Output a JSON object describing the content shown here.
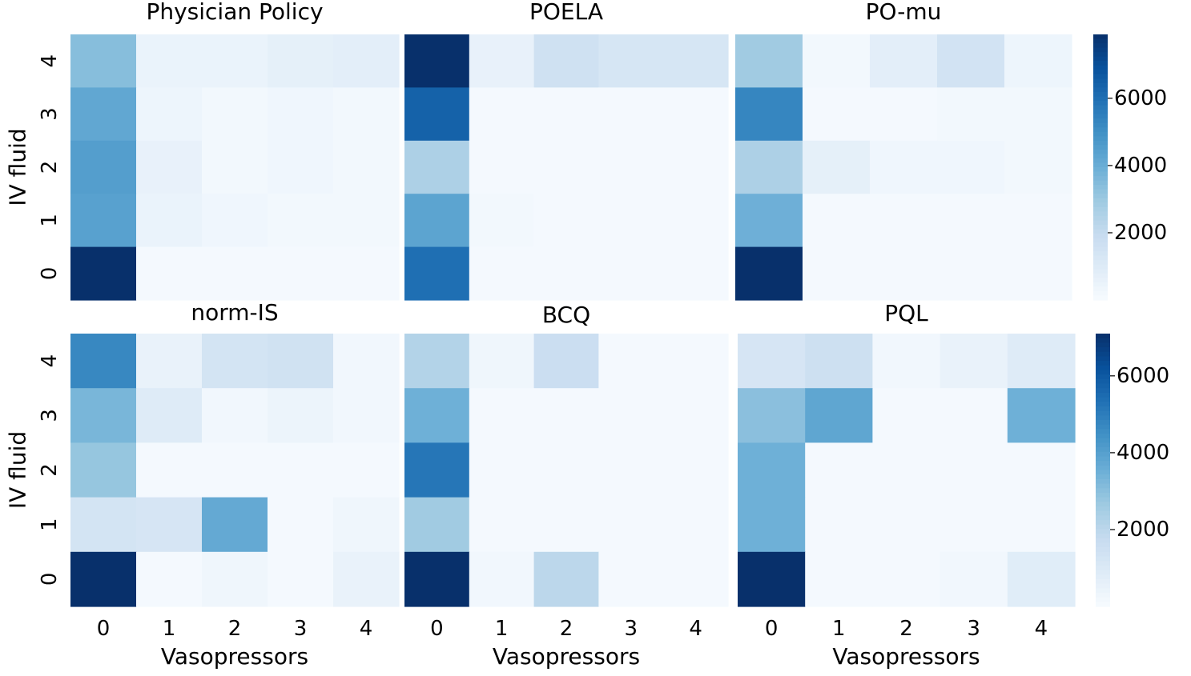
{
  "chart_data": [
    {
      "type": "heatmap",
      "title": "Physician Policy",
      "xlabel": "",
      "ylabel": "IV fluid",
      "x_ticks": [
        "0",
        "1",
        "2",
        "3",
        "4"
      ],
      "y_ticks": [
        "4",
        "3",
        "2",
        "1",
        "0"
      ],
      "values": [
        [
          3400,
          500,
          500,
          700,
          800
        ],
        [
          4200,
          400,
          200,
          300,
          200
        ],
        [
          4500,
          600,
          200,
          300,
          200
        ],
        [
          4400,
          500,
          300,
          200,
          200
        ],
        [
          7900,
          100,
          100,
          100,
          100
        ]
      ],
      "vmin": 0,
      "vmax": 7900,
      "colormap": "Blues",
      "colorbar_group": 0
    },
    {
      "type": "heatmap",
      "title": "POELA",
      "xlabel": "",
      "ylabel": "",
      "x_ticks": [
        "0",
        "1",
        "2",
        "3",
        "4"
      ],
      "y_ticks": [
        "4",
        "3",
        "2",
        "1",
        "0"
      ],
      "values": [
        [
          7900,
          600,
          1600,
          1300,
          1300
        ],
        [
          6400,
          100,
          100,
          100,
          100
        ],
        [
          2600,
          100,
          100,
          100,
          100
        ],
        [
          4300,
          200,
          100,
          100,
          100
        ],
        [
          6000,
          100,
          100,
          100,
          100
        ]
      ],
      "vmin": 0,
      "vmax": 7900,
      "colormap": "Blues",
      "colorbar_group": 0
    },
    {
      "type": "heatmap",
      "title": "PO-mu",
      "xlabel": "",
      "ylabel": "",
      "x_ticks": [
        "0",
        "1",
        "2",
        "3",
        "4"
      ],
      "y_ticks": [
        "4",
        "3",
        "2",
        "1",
        "0"
      ],
      "values": [
        [
          2900,
          200,
          800,
          1500,
          400
        ],
        [
          5300,
          100,
          100,
          200,
          200
        ],
        [
          2600,
          700,
          300,
          300,
          200
        ],
        [
          3900,
          100,
          100,
          100,
          100
        ],
        [
          7900,
          100,
          100,
          100,
          100
        ]
      ],
      "vmin": 0,
      "vmax": 7900,
      "colormap": "Blues",
      "colorbar_group": 0
    },
    {
      "type": "heatmap",
      "title": "norm-IS",
      "xlabel": "Vasopressors",
      "ylabel": "IV fluid",
      "x_ticks": [
        "0",
        "1",
        "2",
        "3",
        "4"
      ],
      "y_ticks": [
        "4",
        "3",
        "2",
        "1",
        "0"
      ],
      "values": [
        [
          4700,
          500,
          1300,
          1400,
          200
        ],
        [
          3300,
          900,
          200,
          400,
          200
        ],
        [
          2800,
          100,
          100,
          100,
          100
        ],
        [
          1300,
          1200,
          3700,
          100,
          300
        ],
        [
          7100,
          100,
          300,
          100,
          500
        ]
      ],
      "vmin": 0,
      "vmax": 7100,
      "colormap": "Blues",
      "colorbar_group": 1
    },
    {
      "type": "heatmap",
      "title": "BCQ",
      "xlabel": "Vasopressors",
      "ylabel": "",
      "x_ticks": [
        "0",
        "1",
        "2",
        "3",
        "4"
      ],
      "y_ticks": [
        "4",
        "3",
        "2",
        "1",
        "0"
      ],
      "values": [
        [
          2200,
          300,
          1600,
          100,
          100
        ],
        [
          3500,
          100,
          100,
          100,
          100
        ],
        [
          5200,
          100,
          100,
          100,
          100
        ],
        [
          2600,
          100,
          100,
          100,
          100
        ],
        [
          7100,
          200,
          2000,
          100,
          100
        ]
      ],
      "vmin": 0,
      "vmax": 7100,
      "colormap": "Blues",
      "colorbar_group": 1
    },
    {
      "type": "heatmap",
      "title": "PQL",
      "xlabel": "Vasopressors",
      "ylabel": "",
      "x_ticks": [
        "0",
        "1",
        "2",
        "3",
        "4"
      ],
      "y_ticks": [
        "4",
        "3",
        "2",
        "1",
        "0"
      ],
      "values": [
        [
          1200,
          1500,
          200,
          500,
          900
        ],
        [
          3000,
          3800,
          100,
          100,
          3500
        ],
        [
          3500,
          100,
          100,
          100,
          100
        ],
        [
          3500,
          100,
          100,
          100,
          100
        ],
        [
          7100,
          100,
          100,
          200,
          800
        ]
      ],
      "vmin": 0,
      "vmax": 7100,
      "colormap": "Blues",
      "colorbar_group": 1
    }
  ],
  "colorbars": [
    {
      "ticks": [
        2000,
        4000,
        6000
      ],
      "tick_labels": [
        "2000",
        "4000",
        "6000"
      ],
      "min": 0,
      "max": 7900
    },
    {
      "ticks": [
        2000,
        4000,
        6000
      ],
      "tick_labels": [
        "2000",
        "4000",
        "6000"
      ],
      "min": 0,
      "max": 7100
    }
  ]
}
